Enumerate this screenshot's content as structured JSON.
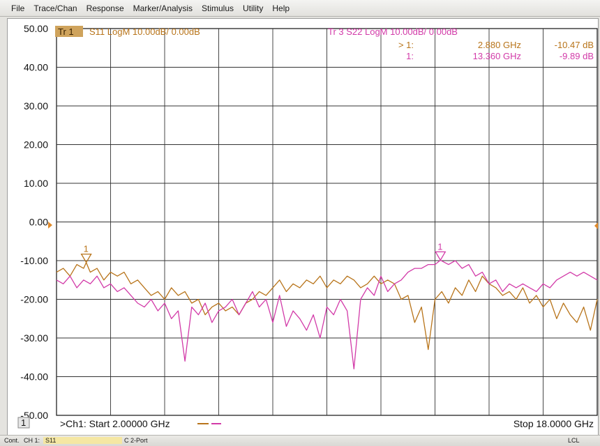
{
  "menu": [
    "File",
    "Trace/Chan",
    "Response",
    "Marker/Analysis",
    "Stimulus",
    "Utility",
    "Help"
  ],
  "traces": {
    "tr1": {
      "badge": "Tr 1",
      "label": "S11 LogM 10.00dB/  0.00dB",
      "color": "#b8741a"
    },
    "tr3": {
      "label": "Tr  3   S22 LogM 10.00dB/  0.00dB",
      "color": "#d23aa8"
    }
  },
  "markers": [
    {
      "prefix": "> 1:",
      "freq": "2.880 GHz",
      "value": "-10.47 dB",
      "color": "#b8741a"
    },
    {
      "prefix": "1:",
      "freq": "13.360 GHz",
      "value": "-9.89 dB",
      "color": "#d23aa8"
    }
  ],
  "marker_tags": [
    "1",
    "1"
  ],
  "channel": {
    "number": "1",
    "start": ">Ch1: Start  2.00000 GHz",
    "stop": "Stop  18.0000 GHz"
  },
  "status_bar": {
    "mode": "Cont.",
    "ch": "CH 1:",
    "param": "S11",
    "cal": "C 2-Port",
    "lcl": "LCL"
  },
  "chart_data": {
    "type": "line",
    "title": "",
    "xlabel": "",
    "ylabel": "",
    "xlim": [
      2,
      18
    ],
    "ylim": [
      -50,
      50
    ],
    "yticks": [
      "50.00",
      "40.00",
      "30.00",
      "20.00",
      "10.00",
      "0.00",
      "-10.00",
      "-20.00",
      "-30.00",
      "-40.00",
      "-50.00"
    ],
    "grid": true,
    "reference_level": 0,
    "series": [
      {
        "name": "S11",
        "color": "#b8741a",
        "x": [
          2.0,
          2.2,
          2.4,
          2.6,
          2.8,
          2.88,
          3.0,
          3.2,
          3.4,
          3.6,
          3.8,
          4.0,
          4.2,
          4.4,
          4.6,
          4.8,
          5.0,
          5.2,
          5.4,
          5.6,
          5.8,
          6.0,
          6.2,
          6.4,
          6.6,
          6.8,
          7.0,
          7.2,
          7.4,
          7.6,
          7.8,
          8.0,
          8.2,
          8.4,
          8.6,
          8.8,
          9.0,
          9.2,
          9.4,
          9.6,
          9.8,
          10.0,
          10.2,
          10.4,
          10.6,
          10.8,
          11.0,
          11.2,
          11.4,
          11.6,
          11.8,
          12.0,
          12.2,
          12.4,
          12.6,
          12.8,
          13.0,
          13.2,
          13.4,
          13.6,
          13.8,
          14.0,
          14.2,
          14.4,
          14.6,
          14.8,
          15.0,
          15.2,
          15.4,
          15.6,
          15.8,
          16.0,
          16.2,
          16.4,
          16.6,
          16.8,
          17.0,
          17.2,
          17.4,
          17.6,
          17.8,
          18.0
        ],
        "y": [
          -13,
          -12,
          -14,
          -11,
          -12,
          -10.5,
          -13,
          -12,
          -15,
          -13,
          -14,
          -13,
          -16,
          -15,
          -17,
          -19,
          -18,
          -20,
          -17,
          -19,
          -18,
          -21,
          -20,
          -24,
          -22,
          -21,
          -23,
          -22,
          -24,
          -21,
          -20,
          -18,
          -19,
          -17,
          -15,
          -18,
          -16,
          -17,
          -15,
          -16,
          -14,
          -17,
          -15,
          -16,
          -14,
          -15,
          -17,
          -16,
          -14,
          -16,
          -15,
          -16,
          -20,
          -19,
          -26,
          -22,
          -33,
          -20,
          -18,
          -21,
          -17,
          -19,
          -15,
          -18,
          -14,
          -16,
          -17,
          -19,
          -18,
          -20,
          -17,
          -21,
          -19,
          -22,
          -20,
          -25,
          -21,
          -24,
          -26,
          -22,
          -28,
          -20
        ],
        "marker": {
          "x": 2.88,
          "y": -10.47
        }
      },
      {
        "name": "S22",
        "color": "#d23aa8",
        "x": [
          2.0,
          2.2,
          2.4,
          2.6,
          2.8,
          3.0,
          3.2,
          3.4,
          3.6,
          3.8,
          4.0,
          4.2,
          4.4,
          4.6,
          4.8,
          5.0,
          5.2,
          5.4,
          5.6,
          5.8,
          6.0,
          6.2,
          6.4,
          6.6,
          6.8,
          7.0,
          7.2,
          7.4,
          7.6,
          7.8,
          8.0,
          8.2,
          8.4,
          8.6,
          8.8,
          9.0,
          9.2,
          9.4,
          9.6,
          9.8,
          10.0,
          10.2,
          10.4,
          10.6,
          10.8,
          11.0,
          11.2,
          11.4,
          11.6,
          11.8,
          12.0,
          12.2,
          12.4,
          12.6,
          12.8,
          13.0,
          13.2,
          13.36,
          13.6,
          13.8,
          14.0,
          14.2,
          14.4,
          14.6,
          14.8,
          15.0,
          15.2,
          15.4,
          15.6,
          15.8,
          16.0,
          16.2,
          16.4,
          16.6,
          16.8,
          17.0,
          17.2,
          17.4,
          17.6,
          17.8,
          18.0
        ],
        "y": [
          -15,
          -16,
          -14,
          -17,
          -15,
          -16,
          -14,
          -17,
          -16,
          -18,
          -17,
          -19,
          -21,
          -22,
          -20,
          -23,
          -21,
          -25,
          -23,
          -36,
          -22,
          -24,
          -21,
          -26,
          -23,
          -22,
          -20,
          -24,
          -21,
          -18,
          -22,
          -20,
          -26,
          -19,
          -27,
          -23,
          -25,
          -28,
          -24,
          -30,
          -22,
          -24,
          -20,
          -23,
          -38,
          -20,
          -17,
          -19,
          -14,
          -18,
          -16,
          -15,
          -13,
          -12,
          -12,
          -11,
          -11,
          -9.89,
          -11,
          -10,
          -12,
          -11,
          -14,
          -13,
          -16,
          -15,
          -18,
          -16,
          -17,
          -16,
          -17,
          -18,
          -16,
          -17,
          -15,
          -14,
          -13,
          -14,
          -13,
          -14,
          -15
        ],
        "marker": {
          "x": 13.36,
          "y": -9.89
        }
      }
    ]
  }
}
